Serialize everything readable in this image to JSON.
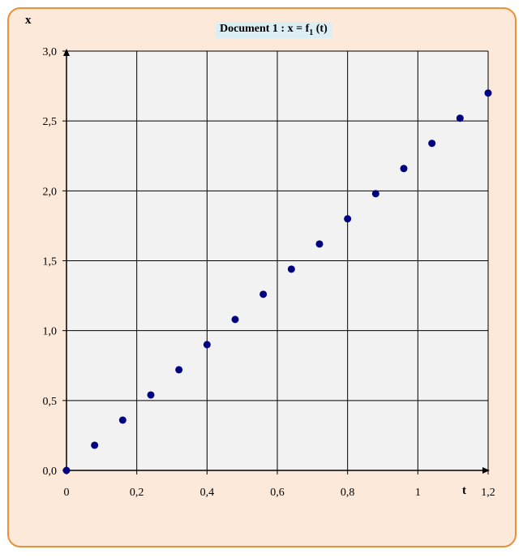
{
  "chart_data": {
    "type": "scatter",
    "title": "Document 1 : x = f",
    "title_subscript": "1",
    "title_suffix": " (t)",
    "xlabel": "t",
    "ylabel": "x",
    "xlim": [
      0,
      1.2
    ],
    "ylim": [
      0,
      3.0
    ],
    "x_ticks": [
      "0",
      "0,2",
      "0,4",
      "0,6",
      "0,8",
      "1",
      "1,2"
    ],
    "y_ticks": [
      "0,0",
      "0,5",
      "1,0",
      "1,5",
      "2,0",
      "2,5",
      "3,0"
    ],
    "grid": true,
    "marker_color": "#000080",
    "points": [
      {
        "x": 0.0,
        "y": 0.0
      },
      {
        "x": 0.08,
        "y": 0.18
      },
      {
        "x": 0.16,
        "y": 0.36
      },
      {
        "x": 0.24,
        "y": 0.54
      },
      {
        "x": 0.32,
        "y": 0.72
      },
      {
        "x": 0.4,
        "y": 0.9
      },
      {
        "x": 0.48,
        "y": 1.08
      },
      {
        "x": 0.56,
        "y": 1.26
      },
      {
        "x": 0.64,
        "y": 1.44
      },
      {
        "x": 0.72,
        "y": 1.62
      },
      {
        "x": 0.8,
        "y": 1.8
      },
      {
        "x": 0.88,
        "y": 1.98
      },
      {
        "x": 0.96,
        "y": 2.16
      },
      {
        "x": 1.04,
        "y": 2.34
      },
      {
        "x": 1.12,
        "y": 2.52
      },
      {
        "x": 1.2,
        "y": 2.7
      }
    ]
  }
}
